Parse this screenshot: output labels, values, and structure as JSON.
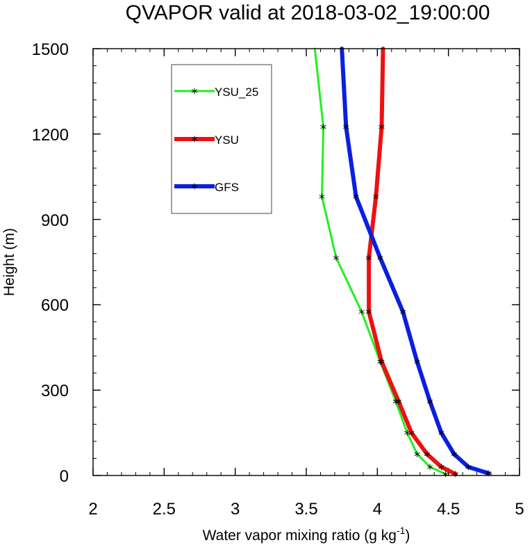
{
  "chart_data": {
    "type": "line",
    "title": "QVAPOR valid at 2018-03-02_19:00:00",
    "xlabel": "Water vapor mixing ratio (g kg",
    "xlabel_sup": "-1",
    "xlabel_end": ")",
    "ylabel": "Height (m)",
    "xlim": [
      2,
      5
    ],
    "ylim": [
      0,
      1500
    ],
    "xticks": [
      "2",
      "2.5",
      "3",
      "3.5",
      "4",
      "4.5",
      "5"
    ],
    "yticks": [
      "0",
      "300",
      "600",
      "900",
      "1200",
      "1500"
    ],
    "legend_position": "top-left",
    "series": [
      {
        "name": "YSU_25",
        "color": "#22ee22",
        "line_width": 3,
        "points": [
          [
            4.48,
            5
          ],
          [
            4.37,
            30
          ],
          [
            4.28,
            75
          ],
          [
            4.21,
            150
          ],
          [
            4.13,
            260
          ],
          [
            4.02,
            400
          ],
          [
            3.89,
            575
          ],
          [
            3.71,
            765
          ],
          [
            3.61,
            980
          ],
          [
            3.62,
            1225
          ],
          [
            3.56,
            1500
          ]
        ],
        "markers": [
          [
            4.48,
            5
          ],
          [
            4.37,
            30
          ],
          [
            4.28,
            75
          ],
          [
            4.21,
            150
          ],
          [
            4.13,
            260
          ],
          [
            4.02,
            400
          ],
          [
            3.89,
            575
          ],
          [
            3.71,
            765
          ],
          [
            3.61,
            980
          ],
          [
            3.62,
            1225
          ]
        ]
      },
      {
        "name": "YSU",
        "color": "#ee1111",
        "line_width": 6,
        "points": [
          [
            4.55,
            5
          ],
          [
            4.45,
            30
          ],
          [
            4.35,
            75
          ],
          [
            4.24,
            150
          ],
          [
            4.15,
            260
          ],
          [
            4.03,
            400
          ],
          [
            3.94,
            575
          ],
          [
            3.94,
            765
          ],
          [
            3.99,
            980
          ],
          [
            4.03,
            1225
          ],
          [
            4.04,
            1500
          ]
        ],
        "markers": [
          [
            4.55,
            5
          ],
          [
            4.45,
            30
          ],
          [
            4.35,
            75
          ],
          [
            4.24,
            150
          ],
          [
            4.15,
            260
          ],
          [
            4.03,
            400
          ],
          [
            3.94,
            575
          ],
          [
            3.94,
            765
          ],
          [
            3.99,
            980
          ],
          [
            4.03,
            1225
          ]
        ]
      },
      {
        "name": "GFS",
        "color": "#0a1fe0",
        "line_width": 6,
        "points": [
          [
            4.78,
            8
          ],
          [
            4.64,
            30
          ],
          [
            4.54,
            75
          ],
          [
            4.45,
            150
          ],
          [
            4.37,
            260
          ],
          [
            4.28,
            400
          ],
          [
            4.18,
            575
          ],
          [
            4.02,
            765
          ],
          [
            3.85,
            980
          ],
          [
            3.78,
            1225
          ],
          [
            3.75,
            1500
          ]
        ],
        "markers": [
          [
            4.78,
            8
          ],
          [
            4.64,
            30
          ],
          [
            4.54,
            75
          ],
          [
            4.45,
            150
          ],
          [
            4.37,
            260
          ],
          [
            4.28,
            400
          ],
          [
            4.18,
            575
          ],
          [
            4.02,
            765
          ],
          [
            3.85,
            980
          ],
          [
            3.78,
            1225
          ]
        ]
      }
    ]
  }
}
